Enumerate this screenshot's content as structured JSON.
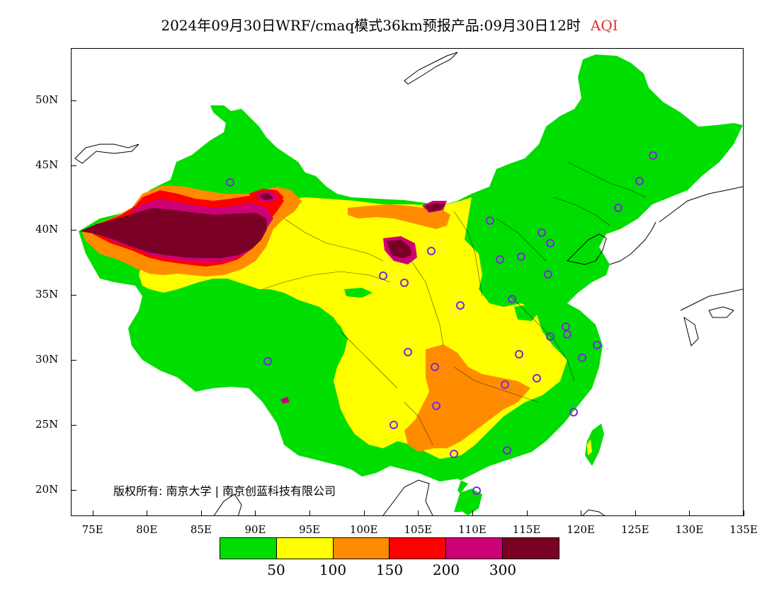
{
  "title": {
    "text": "2024年09月30日WRF/cmaq模式36km预报产品:09月30日12时",
    "variable": "AQI"
  },
  "axes": {
    "lat_labels": [
      "50N",
      "45N",
      "40N",
      "35N",
      "30N",
      "25N",
      "20N"
    ],
    "lat_values": [
      50,
      45,
      40,
      35,
      30,
      25,
      20
    ],
    "lon_labels": [
      "75E",
      "80E",
      "85E",
      "90E",
      "95E",
      "100E",
      "105E",
      "110E",
      "115E",
      "120E",
      "125E",
      "130E",
      "135E"
    ],
    "lon_values": [
      75,
      80,
      85,
      90,
      95,
      100,
      105,
      110,
      115,
      120,
      125,
      130,
      135
    ],
    "lon_range": [
      73,
      135
    ],
    "lat_range": [
      18,
      54
    ]
  },
  "copyright": "版权所有: 南京大学 | 南京创蓝科技有限公司",
  "legend": {
    "colors": [
      "#00dd00",
      "#ffff00",
      "#ff8c00",
      "#ff0000",
      "#cc0077",
      "#7a0025"
    ],
    "labels": [
      "50",
      "100",
      "150",
      "200",
      "300"
    ]
  },
  "map_colors": {
    "good": "#00dd00",
    "moderate": "#ffff00",
    "usg": "#ff8c00",
    "unhealthy": "#ff0000",
    "very_unhealthy": "#cc0077",
    "hazardous": "#7a0025",
    "city_marker": "#7a2ad8"
  }
}
